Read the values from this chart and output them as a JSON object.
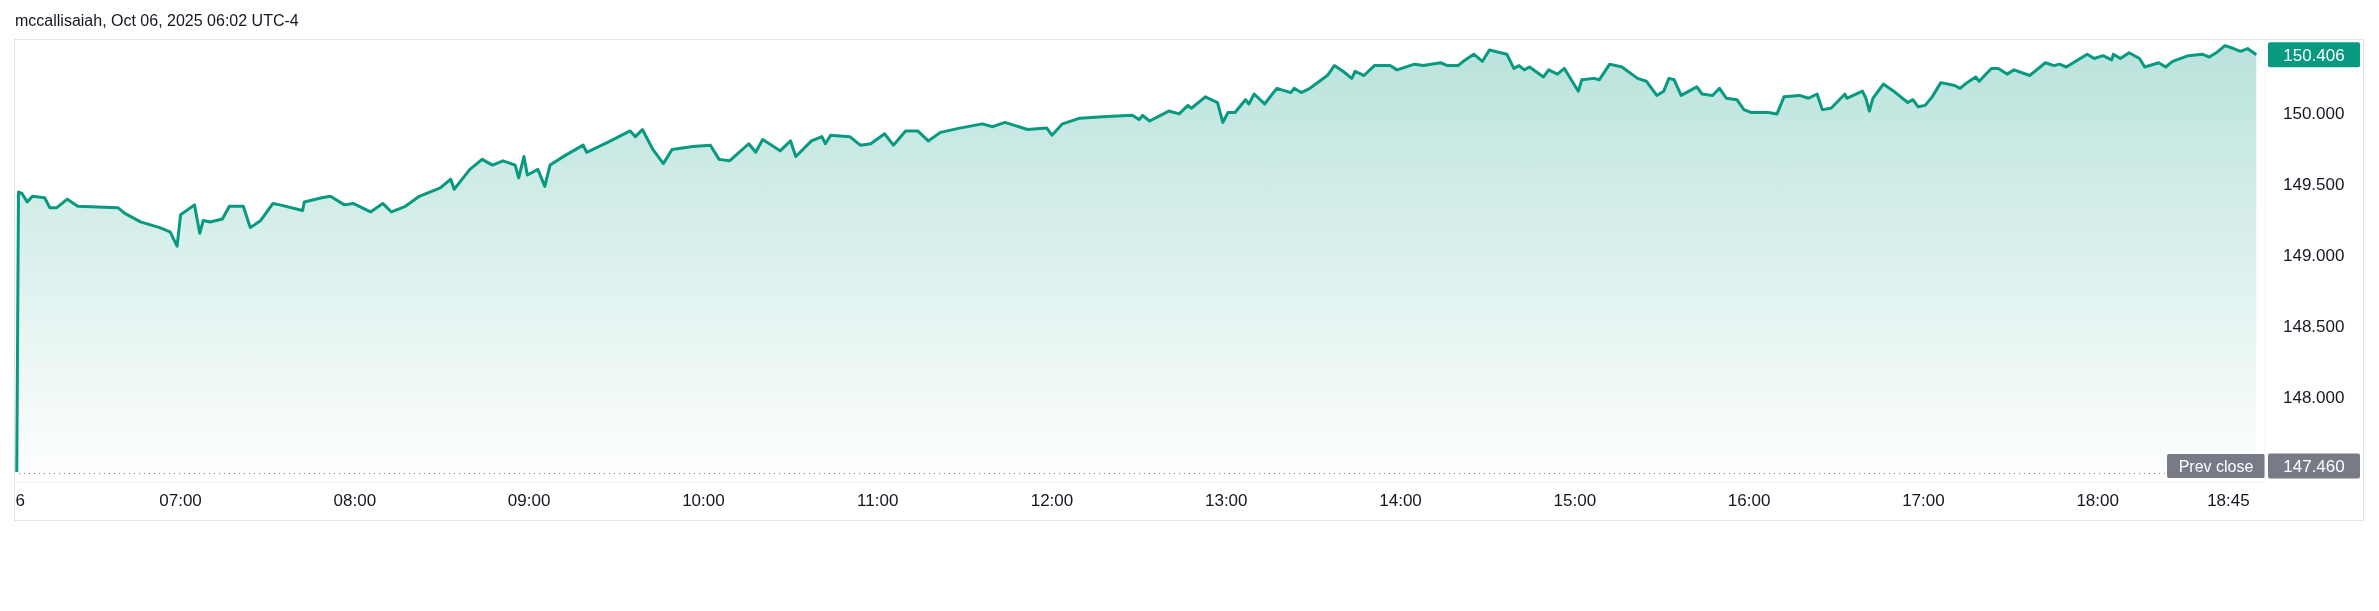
{
  "chart_data": {
    "type": "area",
    "title": "mccallisaiah, Oct 06, 2025 06:02 UTC-4",
    "x": [
      6.06,
      6.07,
      6.09,
      6.12,
      6.15,
      6.22,
      6.25,
      6.29,
      6.35,
      6.41,
      6.64,
      6.68,
      6.77,
      6.88,
      6.94,
      6.98,
      7.0,
      7.08,
      7.11,
      7.13,
      7.17,
      7.24,
      7.28,
      7.36,
      7.4,
      7.46,
      7.53,
      7.57,
      7.7,
      7.71,
      7.81,
      7.86,
      7.94,
      7.99,
      8.09,
      8.16,
      8.21,
      8.29,
      8.37,
      8.49,
      8.55,
      8.57,
      8.66,
      8.73,
      8.79,
      8.85,
      8.92,
      8.94,
      8.97,
      8.99,
      9.05,
      9.09,
      9.12,
      9.21,
      9.31,
      9.33,
      9.45,
      9.58,
      9.61,
      9.65,
      9.71,
      9.77,
      9.82,
      9.94,
      10.04,
      10.09,
      10.15,
      10.26,
      10.3,
      10.34,
      10.44,
      10.5,
      10.53,
      10.62,
      10.68,
      10.7,
      10.73,
      10.84,
      10.9,
      10.96,
      11.04,
      11.09,
      11.16,
      11.23,
      11.29,
      11.36,
      11.47,
      11.6,
      11.66,
      11.73,
      11.86,
      11.97,
      12.0,
      12.06,
      12.16,
      12.29,
      12.46,
      12.5,
      12.52,
      12.56,
      12.67,
      12.73,
      12.78,
      12.8,
      12.88,
      12.95,
      12.98,
      13.01,
      13.05,
      13.11,
      13.13,
      13.16,
      13.22,
      13.29,
      13.37,
      13.39,
      13.43,
      13.48,
      13.58,
      13.62,
      13.67,
      13.72,
      13.74,
      13.79,
      13.85,
      13.94,
      13.98,
      14.08,
      14.13,
      14.23,
      14.27,
      14.33,
      14.36,
      14.42,
      14.47,
      14.51,
      14.61,
      14.65,
      14.68,
      14.71,
      14.74,
      14.82,
      14.85,
      14.9,
      14.94,
      15.02,
      15.04,
      15.11,
      15.14,
      15.2,
      15.27,
      15.36,
      15.41,
      15.47,
      15.51,
      15.54,
      15.57,
      15.61,
      15.7,
      15.73,
      15.79,
      15.83,
      15.87,
      15.93,
      15.97,
      16.01,
      16.11,
      16.16,
      16.2,
      16.29,
      16.34,
      16.39,
      16.42,
      16.47,
      16.55,
      16.56,
      16.65,
      16.67,
      16.69,
      16.71,
      16.77,
      16.84,
      16.91,
      16.94,
      16.97,
      17.01,
      17.05,
      17.1,
      17.18,
      17.21,
      17.25,
      17.3,
      17.32,
      17.39,
      17.43,
      17.48,
      17.52,
      17.61,
      17.7,
      17.75,
      17.78,
      17.82,
      17.86,
      17.94,
      17.98,
      18.03,
      18.08,
      18.09,
      18.13,
      18.18,
      18.24,
      18.27,
      18.35,
      18.39,
      18.43,
      18.52,
      18.6,
      18.64,
      18.68,
      18.73,
      18.78,
      18.82,
      18.86,
      18.91
    ],
    "values": [
      147.47,
      149.44,
      149.43,
      149.37,
      149.41,
      149.4,
      149.33,
      149.33,
      149.39,
      149.34,
      149.33,
      149.29,
      149.23,
      149.19,
      149.16,
      149.06,
      149.28,
      149.35,
      149.15,
      149.24,
      149.23,
      149.25,
      149.34,
      149.34,
      149.19,
      149.24,
      149.36,
      149.35,
      149.31,
      149.37,
      149.4,
      149.41,
      149.35,
      149.36,
      149.3,
      149.36,
      149.3,
      149.34,
      149.41,
      149.47,
      149.53,
      149.46,
      149.6,
      149.67,
      149.63,
      149.66,
      149.63,
      149.54,
      149.69,
      149.56,
      149.6,
      149.48,
      149.63,
      149.7,
      149.77,
      149.72,
      149.79,
      149.87,
      149.83,
      149.88,
      149.74,
      149.64,
      149.74,
      149.76,
      149.77,
      149.67,
      149.66,
      149.78,
      149.72,
      149.81,
      149.73,
      149.8,
      149.69,
      149.8,
      149.83,
      149.78,
      149.84,
      149.83,
      149.77,
      149.78,
      149.85,
      149.77,
      149.87,
      149.87,
      149.8,
      149.86,
      149.89,
      149.92,
      149.9,
      149.93,
      149.88,
      149.89,
      149.84,
      149.92,
      149.96,
      149.97,
      149.98,
      149.95,
      149.98,
      149.94,
      150.01,
      149.99,
      150.05,
      150.03,
      150.11,
      150.07,
      149.93,
      150.0,
      150.0,
      150.09,
      150.06,
      150.13,
      150.06,
      150.17,
      150.14,
      150.17,
      150.14,
      150.17,
      150.26,
      150.33,
      150.29,
      150.24,
      150.29,
      150.26,
      150.33,
      150.33,
      150.3,
      150.34,
      150.33,
      150.35,
      150.33,
      150.33,
      150.36,
      150.41,
      150.36,
      150.44,
      150.41,
      150.31,
      150.33,
      150.3,
      150.32,
      150.25,
      150.3,
      150.27,
      150.31,
      150.15,
      150.23,
      150.24,
      150.23,
      150.34,
      150.32,
      150.24,
      150.22,
      150.12,
      150.15,
      150.24,
      150.23,
      150.12,
      150.18,
      150.13,
      150.12,
      150.17,
      150.1,
      150.09,
      150.02,
      150.0,
      150.0,
      149.99,
      150.11,
      150.12,
      150.1,
      150.13,
      150.02,
      150.03,
      150.13,
      150.1,
      150.15,
      150.1,
      150.01,
      150.1,
      150.2,
      150.14,
      150.07,
      150.09,
      150.04,
      150.05,
      150.11,
      150.21,
      150.19,
      150.17,
      150.21,
      150.25,
      150.22,
      150.31,
      150.31,
      150.27,
      150.3,
      150.26,
      150.35,
      150.33,
      150.34,
      150.32,
      150.35,
      150.41,
      150.38,
      150.4,
      150.37,
      150.41,
      150.38,
      150.42,
      150.38,
      150.32,
      150.35,
      150.32,
      150.36,
      150.4,
      150.41,
      150.39,
      150.42,
      150.47,
      150.45,
      150.43,
      150.45,
      150.406
    ],
    "value_labels": [
      null,
      null,
      null,
      null,
      null,
      null,
      null,
      null,
      null,
      null,
      null,
      null,
      null,
      null,
      null,
      null,
      null,
      null,
      null,
      null,
      null,
      null,
      null,
      null,
      null,
      null,
      null,
      null,
      null,
      null,
      null,
      null,
      null,
      null,
      null,
      null,
      null,
      null,
      null,
      null,
      null,
      null,
      null,
      null,
      null,
      null,
      null,
      null,
      null,
      null,
      null,
      null,
      null,
      null,
      null,
      null,
      null,
      null,
      null,
      null,
      null,
      null,
      null,
      null,
      null,
      null,
      null,
      null,
      null,
      null,
      null,
      null,
      null,
      null,
      null,
      null,
      null,
      null,
      null,
      null,
      null,
      null,
      null,
      null,
      null,
      null,
      null,
      null,
      null,
      null,
      null,
      null,
      null,
      null,
      null,
      null,
      null,
      null,
      null,
      null,
      null,
      null,
      null,
      null,
      null,
      null,
      null,
      null,
      null,
      null,
      null,
      null,
      null,
      null,
      null,
      null,
      null,
      null,
      null,
      null,
      null,
      null,
      null,
      null,
      null,
      null,
      null,
      null,
      null,
      null,
      null,
      null,
      null,
      null,
      null,
      null,
      null,
      null,
      null,
      null,
      null,
      null,
      null,
      null,
      null,
      null,
      null,
      null,
      null,
      null,
      null,
      null,
      null,
      null,
      null,
      null,
      null,
      null,
      null,
      null,
      null,
      null,
      null,
      null,
      null,
      null,
      null,
      null,
      null,
      null,
      null,
      null,
      null,
      null,
      null,
      null,
      null,
      null,
      null,
      null,
      null,
      null,
      null,
      null,
      null,
      null,
      null,
      null,
      null,
      null,
      null,
      null,
      null,
      null,
      null,
      null,
      null,
      null,
      null,
      null,
      null,
      null,
      null,
      null,
      null,
      null,
      null,
      null,
      null,
      null,
      null,
      null,
      null,
      null,
      null,
      null,
      null,
      null,
      null,
      null,
      null,
      null,
      null,
      "150.406"
    ],
    "color": "#089981",
    "xlim": [
      6.05,
      18.96
    ],
    "ylim": [
      147.4,
      150.51
    ],
    "xticks": [
      {
        "value": 6.08,
        "label": "6"
      },
      {
        "value": 7,
        "label": "07:00"
      },
      {
        "value": 8,
        "label": "08:00"
      },
      {
        "value": 9,
        "label": "09:00"
      },
      {
        "value": 10,
        "label": "10:00"
      },
      {
        "value": 11,
        "label": "11:00"
      },
      {
        "value": 12,
        "label": "12:00"
      },
      {
        "value": 13,
        "label": "13:00"
      },
      {
        "value": 14,
        "label": "14:00"
      },
      {
        "value": 15,
        "label": "15:00"
      },
      {
        "value": 16,
        "label": "16:00"
      },
      {
        "value": 17,
        "label": "17:00"
      },
      {
        "value": 18,
        "label": "18:00"
      },
      {
        "value": 18.75,
        "label": "18:45"
      }
    ],
    "yticks": [
      {
        "value": 148,
        "label": "148.000"
      },
      {
        "value": 148.5,
        "label": "148.500"
      },
      {
        "value": 149,
        "label": "149.000"
      },
      {
        "value": 149.5,
        "label": "149.500"
      },
      {
        "value": 150,
        "label": "150.000"
      }
    ],
    "ref_lines": [
      {
        "axis": "y",
        "value": 147.46,
        "label": "Prev close",
        "color": "#787b86",
        "line_style": "dotted"
      }
    ],
    "annotations": [
      "147.460"
    ]
  }
}
